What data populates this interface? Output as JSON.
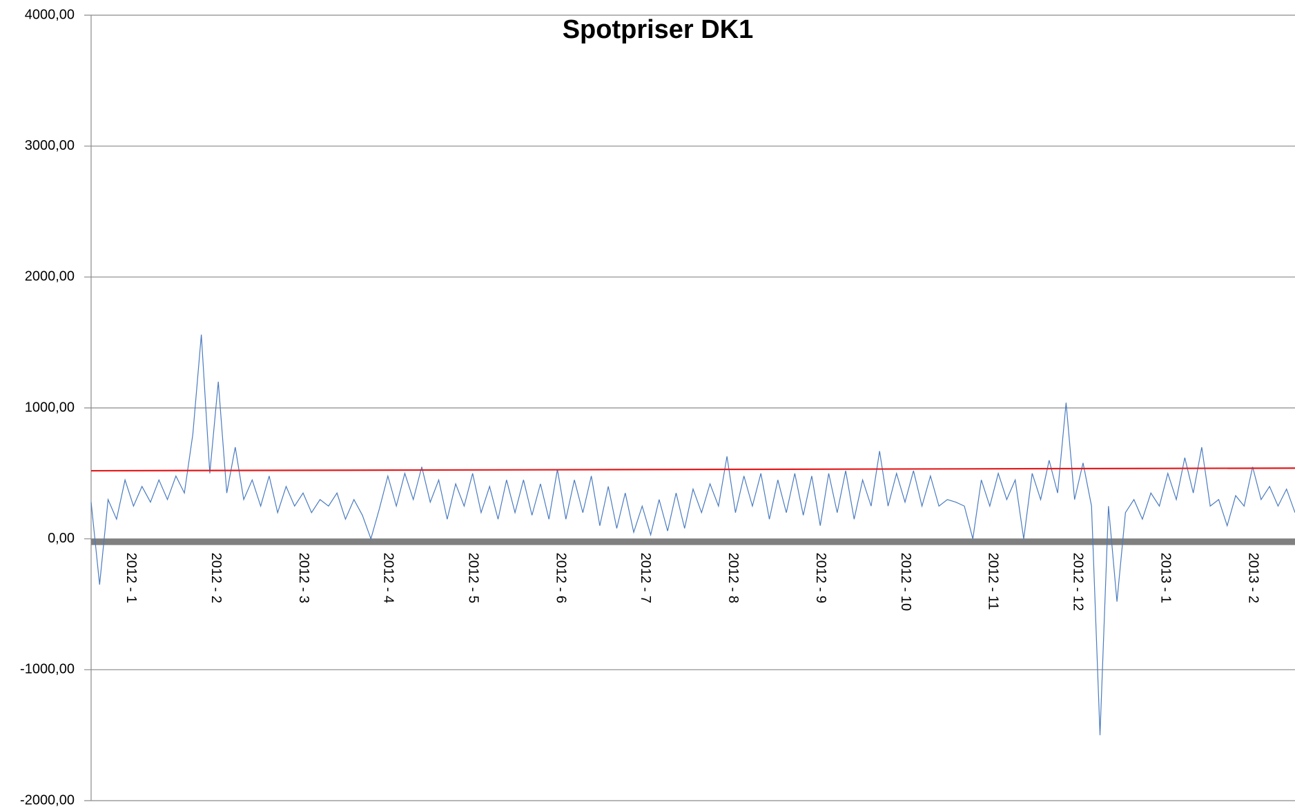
{
  "chart_data": {
    "type": "line",
    "title": "Spotpriser DK1",
    "ylim": [
      -2000,
      4000
    ],
    "yticks": [
      {
        "value": -2000,
        "label": "-2000,00"
      },
      {
        "value": -1000,
        "label": "-1000,00"
      },
      {
        "value": 0,
        "label": "0,00"
      },
      {
        "value": 1000,
        "label": "1000,00"
      },
      {
        "value": 2000,
        "label": "2000,00"
      },
      {
        "value": 3000,
        "label": "3000,00"
      },
      {
        "value": 4000,
        "label": "4000,00"
      }
    ],
    "xlim": [
      0,
      426
    ],
    "xticks": [
      {
        "value": 14,
        "label": "2012 - 1"
      },
      {
        "value": 44,
        "label": "2012 - 2"
      },
      {
        "value": 75,
        "label": "2012 - 3"
      },
      {
        "value": 105,
        "label": "2012 - 4"
      },
      {
        "value": 135,
        "label": "2012 - 5"
      },
      {
        "value": 166,
        "label": "2012 - 6"
      },
      {
        "value": 196,
        "label": "2012 - 7"
      },
      {
        "value": 227,
        "label": "2012 - 8"
      },
      {
        "value": 258,
        "label": "2012 - 9"
      },
      {
        "value": 288,
        "label": "2012 - 10"
      },
      {
        "value": 319,
        "label": "2012 - 11"
      },
      {
        "value": 349,
        "label": "2012 - 12"
      },
      {
        "value": 380,
        "label": "2013 - 1"
      },
      {
        "value": 411,
        "label": "2013 - 2"
      }
    ],
    "grid": true,
    "series": [
      {
        "color": "#4a7bbf",
        "x": [
          0,
          3,
          6,
          9,
          12,
          15,
          18,
          21,
          24,
          27,
          30,
          33,
          36,
          39,
          42,
          45,
          48,
          51,
          54,
          57,
          60,
          63,
          66,
          69,
          72,
          75,
          78,
          81,
          84,
          87,
          90,
          93,
          96,
          99,
          102,
          105,
          108,
          111,
          114,
          117,
          120,
          123,
          126,
          129,
          132,
          135,
          138,
          141,
          144,
          147,
          150,
          153,
          156,
          159,
          162,
          165,
          168,
          171,
          174,
          177,
          180,
          183,
          186,
          189,
          192,
          195,
          198,
          201,
          204,
          207,
          210,
          213,
          216,
          219,
          222,
          225,
          228,
          231,
          234,
          237,
          240,
          243,
          246,
          249,
          252,
          255,
          258,
          261,
          264,
          267,
          270,
          273,
          276,
          279,
          282,
          285,
          288,
          291,
          294,
          297,
          300,
          303,
          306,
          309,
          312,
          315,
          318,
          321,
          324,
          327,
          330,
          333,
          336,
          339,
          342,
          345,
          348,
          351,
          354,
          357,
          360,
          363,
          366,
          369,
          372,
          375,
          378,
          381,
          384,
          387,
          390,
          393,
          396,
          399,
          402,
          405,
          408,
          411,
          414,
          417,
          420,
          423,
          426
        ],
        "values": [
          280,
          -350,
          300,
          150,
          450,
          250,
          400,
          280,
          450,
          300,
          480,
          350,
          800,
          1560,
          500,
          1200,
          350,
          700,
          300,
          450,
          250,
          480,
          200,
          400,
          250,
          350,
          200,
          300,
          250,
          350,
          150,
          300,
          180,
          0,
          230,
          480,
          250,
          500,
          300,
          550,
          280,
          450,
          150,
          420,
          250,
          500,
          200,
          400,
          150,
          450,
          200,
          450,
          180,
          420,
          150,
          530,
          150,
          450,
          200,
          480,
          100,
          400,
          80,
          350,
          50,
          250,
          30,
          300,
          60,
          350,
          80,
          380,
          200,
          420,
          250,
          630,
          200,
          480,
          250,
          500,
          150,
          450,
          200,
          500,
          180,
          480,
          100,
          500,
          200,
          520,
          150,
          450,
          250,
          670,
          250,
          500,
          280,
          520,
          250,
          480,
          250,
          300,
          280,
          250,
          0,
          450,
          250,
          500,
          300,
          450,
          0,
          500,
          300,
          600,
          350,
          1040,
          300,
          580,
          250,
          -1500,
          250,
          -480,
          200,
          300,
          150,
          350,
          250,
          500,
          300,
          620,
          350,
          700,
          250,
          300,
          100,
          330,
          250,
          550,
          300,
          400,
          250,
          380,
          200
        ]
      },
      {
        "color": "#e31a1c",
        "x": [
          0,
          426
        ],
        "values": [
          520,
          540
        ]
      }
    ]
  }
}
